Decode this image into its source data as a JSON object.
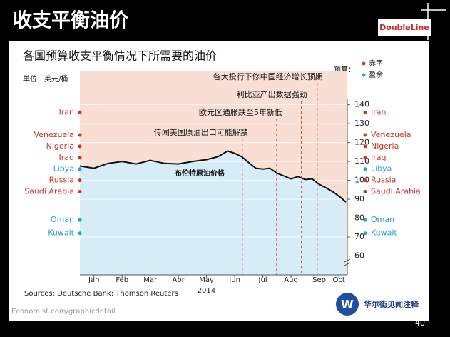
{
  "slide": {
    "title": "收支平衡油价",
    "logo": "DoubleLine",
    "page_number": "40",
    "watermark": "华尔街见闻注释"
  },
  "chart_data": {
    "type": "line",
    "title": "各国预算收支平衡情况下所需要的油价",
    "unit": "单位：美元/桶",
    "legend_title": "预算：",
    "source": "Sources: Deutsche Bank; Thomson Reuters",
    "credit": "Economist.com/graphicdetail",
    "xlabel": "2014",
    "xlim": [
      0,
      9.5
    ],
    "xticks": [
      {
        "value": 0.5,
        "label": "Jan"
      },
      {
        "value": 1.5,
        "label": "Feb"
      },
      {
        "value": 2.5,
        "label": "Mar"
      },
      {
        "value": 3.5,
        "label": "Apr"
      },
      {
        "value": 4.5,
        "label": "May"
      },
      {
        "value": 5.5,
        "label": "Jun"
      },
      {
        "value": 6.5,
        "label": "Jul"
      },
      {
        "value": 7.5,
        "label": "Aug"
      },
      {
        "value": 8.5,
        "label": "Sep"
      },
      {
        "value": 9.2,
        "label": "Oct"
      }
    ],
    "ylim": [
      50,
      158
    ],
    "yticks": [
      60,
      70,
      80,
      90,
      100,
      110,
      120,
      130,
      140
    ],
    "grid": true,
    "line": {
      "name": "布伦特原油价格",
      "color": "#111111",
      "x": [
        0,
        0.5,
        1,
        1.5,
        2,
        2.5,
        3,
        3.5,
        4,
        4.5,
        4.9,
        5.25,
        5.5,
        5.75,
        6,
        6.25,
        6.5,
        6.75,
        7,
        7.25,
        7.5,
        7.75,
        8,
        8.25,
        8.5,
        8.75,
        9,
        9.25,
        9.45
      ],
      "values": [
        107.6,
        106.4,
        109,
        110,
        108.7,
        110.6,
        109,
        108.7,
        110,
        111,
        112.5,
        115.5,
        114.3,
        112.5,
        109.4,
        106.4,
        106,
        106.4,
        103.8,
        102.3,
        100.8,
        102,
        100.4,
        100.8,
        97.9,
        96,
        93.8,
        91.1,
        88.5
      ]
    },
    "series": [
      {
        "name": "赤字",
        "color": "#c8382c",
        "countries": [
          "Iran",
          "Venezuela",
          "Nigeria",
          "Iraq",
          "Russia",
          "Saudi Arabia"
        ],
        "values": [
          136,
          124,
          118,
          112,
          100,
          94
        ]
      },
      {
        "name": "盈余",
        "color": "#2a9fd0",
        "countries": [
          "Libya",
          "Oman",
          "Kuwait"
        ],
        "values": [
          106,
          79,
          72
        ]
      }
    ],
    "annotations": [
      {
        "text": "传闻美国原油出口可能解禁",
        "x": 5.77
      },
      {
        "text": "欧元区通胀跌至5年新低",
        "x": 6.99
      },
      {
        "text": "利比亚产出数据强劲",
        "x": 7.87
      },
      {
        "text": "各大投行下修中国经济增长预期",
        "x": 8.43
      }
    ]
  }
}
